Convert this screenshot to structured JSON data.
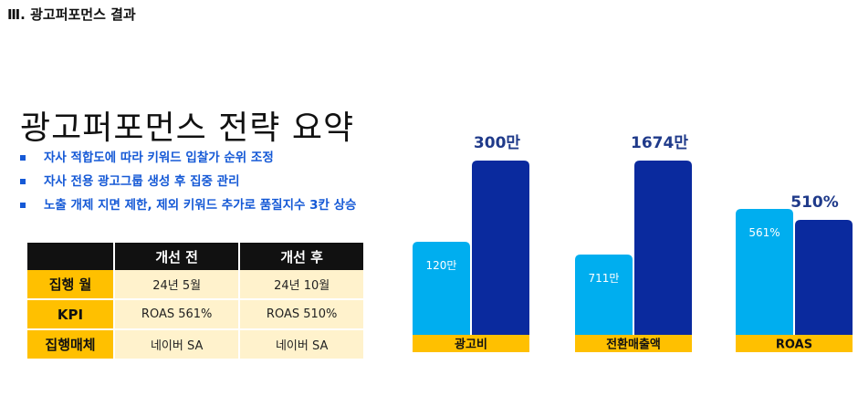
{
  "section_title": "Ⅲ. 광고퍼포먼스 결과",
  "main_title": "광고퍼포먼스 전략 요약",
  "bullets": [
    "자사 적합도에 따라 키워드 입찰가 순위 조정",
    "자사 전용 광고그룹 생성 후 집중 관리",
    "노출 개제 지면 제한, 제외 키워드 추가로 품질지수 3칸 상승"
  ],
  "table": {
    "headers": [
      "",
      "개선 전",
      "개선 후"
    ],
    "rows": [
      {
        "label": "집행 월",
        "before": "24년 5월",
        "after": "24년 10월"
      },
      {
        "label": "KPI",
        "before": "ROAS 561%",
        "after": "ROAS 510%"
      },
      {
        "label": "집행매체",
        "before": "네이버 SA",
        "after": "네이버 SA"
      }
    ]
  },
  "colors": {
    "accent_blue": "#1559d6",
    "before_bar": "#00aeef",
    "after_bar": "#0a2a9e",
    "category_bar": "#ffc000",
    "table_header": "#111111",
    "table_row_head": "#ffc000",
    "table_cell": "#fff2cc"
  },
  "chart_data": [
    {
      "type": "bar",
      "category": "광고비",
      "series": [
        {
          "label": "120만",
          "value": 120
        },
        {
          "label": "300만",
          "value": 300
        }
      ]
    },
    {
      "type": "bar",
      "category": "전환매출액",
      "series": [
        {
          "label": "711만",
          "value": 711
        },
        {
          "label": "1674만",
          "value": 1674
        }
      ]
    },
    {
      "type": "bar",
      "category": "ROAS",
      "series": [
        {
          "label": "561%",
          "value": 561
        },
        {
          "label": "510%",
          "value": 510
        }
      ]
    }
  ]
}
